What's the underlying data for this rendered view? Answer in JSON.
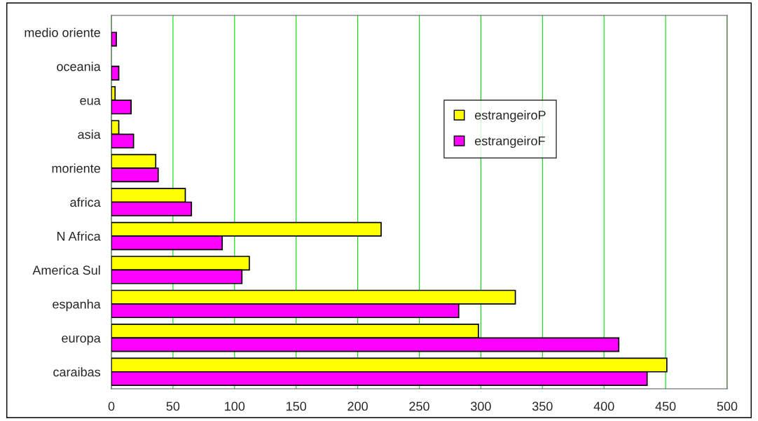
{
  "chart_data": {
    "type": "bar",
    "orientation": "horizontal",
    "categories": [
      "medio oriente",
      "oceania",
      "eua",
      "asia",
      "moriente",
      "africa",
      "N Africa",
      "America Sul",
      "espanha",
      "europa",
      "caraibas"
    ],
    "series": [
      {
        "name": "estrangeiroP",
        "color": "#ffff00",
        "values": [
          null,
          null,
          3,
          6,
          36,
          60,
          219,
          112,
          328,
          298,
          451
        ]
      },
      {
        "name": "estrangeiroF",
        "color": "#ff00ff",
        "values": [
          4,
          6,
          16,
          18,
          38,
          65,
          90,
          106,
          282,
          412,
          435
        ]
      }
    ],
    "xlim": [
      0,
      500
    ],
    "xticks": [
      0,
      50,
      100,
      150,
      200,
      250,
      300,
      350,
      400,
      450,
      500
    ],
    "grid": "x",
    "legend": "top right"
  }
}
